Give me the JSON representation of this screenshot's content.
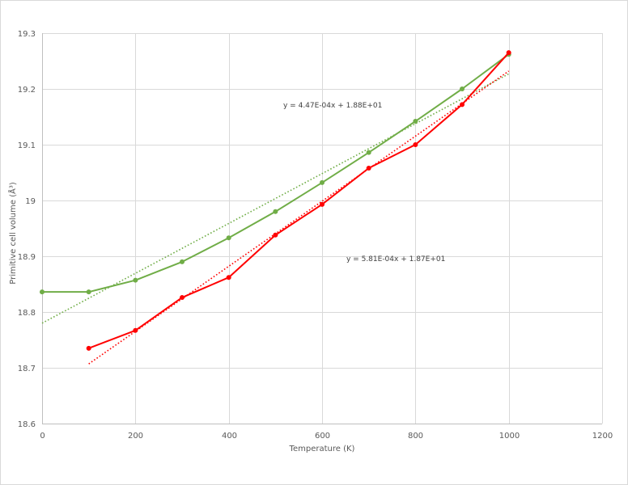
{
  "chart_data": {
    "type": "line",
    "title": "",
    "xlabel": "Temperature  (K)",
    "ylabel": "Primitive cell volume (Å³)",
    "xlim": [
      0,
      1200
    ],
    "ylim": [
      18.6,
      19.3
    ],
    "xticks": [
      0,
      200,
      400,
      600,
      800,
      1000,
      1200
    ],
    "yticks": [
      18.6,
      18.7,
      18.8,
      18.9,
      19,
      19.1,
      19.2,
      19.3
    ],
    "ytick_labels": [
      "18.6",
      "18.7",
      "18.8",
      "18.9",
      "19",
      "19.1",
      "19.2",
      "19.3"
    ],
    "grid": true,
    "legend": "none",
    "series": [
      {
        "name": "green",
        "color": "#70ad47",
        "x": [
          0,
          100,
          200,
          300,
          400,
          500,
          600,
          700,
          800,
          900,
          1000
        ],
        "values": [
          18.836,
          18.836,
          18.857,
          18.89,
          18.933,
          18.98,
          19.032,
          19.086,
          19.142,
          19.2,
          19.262
        ]
      },
      {
        "name": "red",
        "color": "#ff0000",
        "x": [
          100,
          200,
          300,
          400,
          500,
          600,
          700,
          800,
          900,
          1000
        ],
        "values": [
          18.735,
          18.767,
          18.826,
          18.862,
          18.938,
          18.993,
          19.058,
          19.1,
          19.172,
          19.265
        ]
      }
    ],
    "trendlines": [
      {
        "series": "green",
        "type": "linear",
        "color": "#70ad47",
        "x_range": [
          0,
          1000
        ],
        "y_range": [
          18.78,
          19.227
        ],
        "equation": "y = 4.47E-04x + 1.88E+01",
        "label_pos": [
          350,
          133
        ]
      },
      {
        "series": "red",
        "type": "linear",
        "color": "#ff0000",
        "x_range": [
          100,
          1000
        ],
        "y_range": [
          18.707,
          19.232
        ],
        "equation": "y = 5.81E-04x + 1.87E+01",
        "label_pos": [
          428,
          323
        ]
      }
    ]
  }
}
